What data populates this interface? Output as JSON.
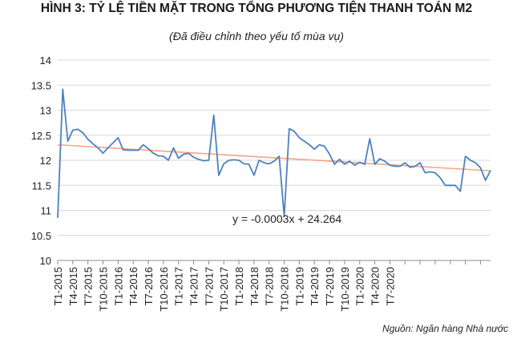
{
  "title": "HÌNH 3: TỶ LỆ TIỀN MẶT TRONG TỔNG PHƯƠNG TIỆN THANH TOÁN M2",
  "subtitle": "(Đã điều chỉnh theo yếu tố mùa vụ)",
  "source": "Nguồn: Ngân hàng Nhà nước",
  "chart_data": {
    "type": "line",
    "title": "HÌNH 3: TỶ LỆ TIỀN MẶT TRONG TỔNG PHƯƠNG TIỆN THANH TOÁN M2",
    "subtitle": "(Đã điều chỉnh theo yếu tố mùa vụ)",
    "xlabel": "",
    "ylabel": "",
    "ylim": [
      10,
      14
    ],
    "y_ticks": [
      "10",
      "10.5",
      "11",
      "11.5",
      "12",
      "12.5",
      "13",
      "13.5",
      "14"
    ],
    "x_tick_labels": [
      "T1-2015",
      "T4-2015",
      "T7-2015",
      "T10-2015",
      "T1-2016",
      "T4-2016",
      "T7-2016",
      "T10-2016",
      "T1-2017",
      "T4-2017",
      "T7-2017",
      "T10-2017",
      "T1-2018",
      "T4-2018",
      "T7-2018",
      "T10-2018",
      "T1-2019",
      "T4-2019",
      "T7-2019",
      "T10-2019",
      "T1-2020",
      "T4-2020",
      "T7-2020"
    ],
    "series": [
      {
        "color": "#4f81bd",
        "values": [
          10.85,
          13.42,
          12.38,
          12.6,
          12.62,
          12.55,
          12.42,
          12.33,
          12.25,
          12.14,
          12.25,
          12.35,
          12.45,
          12.21,
          12.2,
          12.2,
          12.2,
          12.31,
          12.23,
          12.14,
          12.09,
          12.08,
          12.0,
          12.25,
          12.04,
          12.12,
          12.14,
          12.06,
          12.02,
          11.99,
          12.0,
          12.9,
          11.7,
          11.93,
          12.0,
          12.01,
          12.0,
          11.93,
          11.92,
          11.7,
          12.0,
          11.95,
          11.93,
          11.98,
          12.08,
          10.88,
          12.63,
          12.58,
          12.45,
          12.38,
          12.31,
          12.22,
          12.31,
          12.28,
          12.12,
          11.92,
          12.02,
          11.92,
          11.98,
          11.9,
          11.96,
          11.92,
          12.43,
          11.92,
          12.03,
          11.98,
          11.9,
          11.88,
          11.88,
          11.95,
          11.86,
          11.88,
          11.95,
          11.75,
          11.77,
          11.75,
          11.65,
          11.5,
          11.5,
          11.5,
          11.38,
          12.08,
          12.0,
          11.95,
          11.85,
          11.6,
          11.8
        ]
      }
    ],
    "trendline": {
      "color": "#f4a582",
      "start": 12.31,
      "end": 11.79,
      "equation": "y = -0.0003x + 24.264"
    },
    "grid": true,
    "legend": "none"
  }
}
